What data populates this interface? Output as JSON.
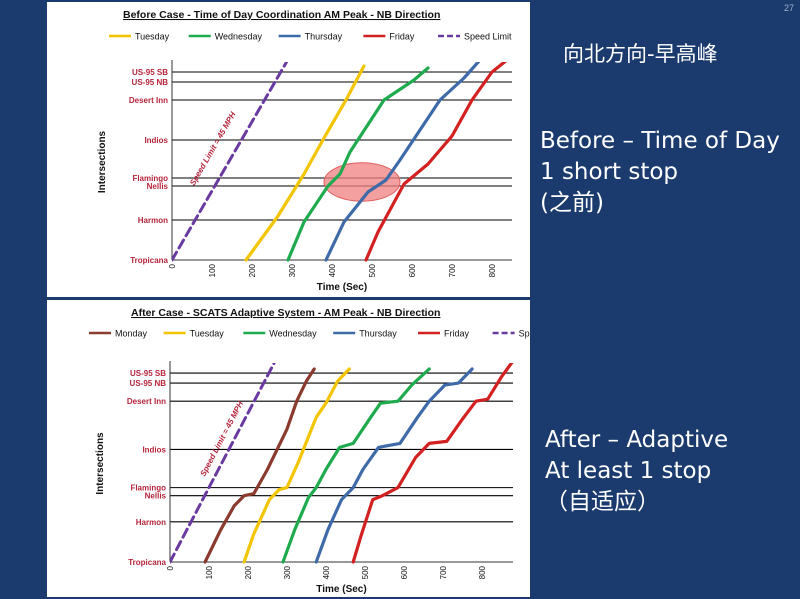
{
  "slide": {
    "page_number": "27",
    "chinese_title": "向北方向-早高峰",
    "before_text": [
      "Before – Time of Day",
      "1 short stop",
      "(之前)"
    ],
    "after_text": [
      "After – Adaptive",
      "At least 1 stop",
      "（自适应）"
    ]
  },
  "chart_data": [
    {
      "type": "line",
      "title": "Before Case - Time of Day Coordination AM Peak - NB Direction",
      "xlabel": "Time (Sec)",
      "ylabel": "Intersections",
      "xlim": [
        0,
        850
      ],
      "xticks": [
        0,
        100,
        200,
        300,
        400,
        500,
        600,
        700,
        800
      ],
      "y_categories": [
        "Tropicana",
        "Harmon",
        "Nellis",
        "Flamingo",
        "Indios",
        "Desert Inn",
        "US-95 NB",
        "US-95 SB"
      ],
      "y_positions": [
        0,
        1,
        1.85,
        2.05,
        3,
        4,
        4.45,
        4.7
      ],
      "ylim": [
        0,
        4.9
      ],
      "legend": [
        "Tuesday",
        "Wednesday",
        "Thursday",
        "Friday",
        "Speed Limit"
      ],
      "annotation": "Speed Limit = 45 MPH",
      "highlight": {
        "x_center": 475,
        "y_center": 1.95,
        "x_radius": 95,
        "y_radius": 0.48,
        "color": "#f08080"
      },
      "series": [
        {
          "name": "Speed Limit",
          "color": "#6a3aa0",
          "dash": true,
          "points": [
            [
              0,
              0
            ],
            [
              295,
              5.1
            ]
          ]
        },
        {
          "name": "Tuesday",
          "color": "#f2c500",
          "points": [
            [
              185,
              0
            ],
            [
              265,
              1.1
            ],
            [
              330,
              2.15
            ],
            [
              380,
              3.05
            ],
            [
              435,
              4.0
            ],
            [
              480,
              4.85
            ]
          ]
        },
        {
          "name": "Wednesday",
          "color": "#1faa4e",
          "points": [
            [
              290,
              0
            ],
            [
              330,
              0.95
            ],
            [
              390,
              1.85
            ],
            [
              420,
              2.15
            ],
            [
              445,
              2.7
            ],
            [
              530,
              4.0
            ],
            [
              605,
              4.5
            ],
            [
              640,
              4.8
            ]
          ]
        },
        {
          "name": "Thursday",
          "color": "#3f6aa8",
          "points": [
            [
              385,
              0
            ],
            [
              430,
              0.95
            ],
            [
              490,
              1.7
            ],
            [
              535,
              2.0
            ],
            [
              570,
              2.5
            ],
            [
              670,
              4.0
            ],
            [
              730,
              4.55
            ],
            [
              770,
              5.0
            ]
          ]
        },
        {
          "name": "Friday",
          "color": "#d32020",
          "points": [
            [
              485,
              0
            ],
            [
              515,
              0.7
            ],
            [
              580,
              1.9
            ],
            [
              640,
              2.4
            ],
            [
              700,
              3.1
            ],
            [
              750,
              4.0
            ],
            [
              800,
              4.7
            ],
            [
              850,
              5.1
            ]
          ]
        }
      ]
    },
    {
      "type": "line",
      "title": "After Case - SCATS Adaptive System - AM Peak - NB Direction",
      "xlabel": "Time (Sec)",
      "ylabel": "Intersections",
      "xlim": [
        0,
        880
      ],
      "xticks": [
        0,
        100,
        200,
        300,
        400,
        500,
        600,
        700,
        800
      ],
      "y_categories": [
        "Tropicana",
        "Harmon",
        "Nellis",
        "Flamingo",
        "Indios",
        "Desert Inn",
        "US-95 NB",
        "US-95 SB"
      ],
      "y_positions": [
        0,
        1,
        1.65,
        1.85,
        2.8,
        4.0,
        4.45,
        4.7
      ],
      "ylim": [
        0,
        4.9
      ],
      "legend": [
        "Monday",
        "Tuesday",
        "Wednesday",
        "Thursday",
        "Friday",
        "Speed Limit"
      ],
      "annotation": "Speed Limit = 45 MPH",
      "series": [
        {
          "name": "Speed Limit",
          "color": "#6a3aa0",
          "dash": true,
          "points": [
            [
              0,
              0
            ],
            [
              270,
              5.0
            ]
          ]
        },
        {
          "name": "Monday",
          "color": "#8b3a2e",
          "points": [
            [
              90,
              0
            ],
            [
              130,
              0.8
            ],
            [
              165,
              1.4
            ],
            [
              190,
              1.65
            ],
            [
              215,
              1.7
            ],
            [
              250,
              2.3
            ],
            [
              300,
              3.3
            ],
            [
              325,
              4.0
            ],
            [
              350,
              4.5
            ],
            [
              370,
              4.8
            ]
          ]
        },
        {
          "name": "Tuesday",
          "color": "#f2c500",
          "points": [
            [
              190,
              0
            ],
            [
              215,
              0.7
            ],
            [
              255,
              1.55
            ],
            [
              280,
              1.8
            ],
            [
              300,
              1.85
            ],
            [
              330,
              2.5
            ],
            [
              375,
              3.6
            ],
            [
              400,
              3.95
            ],
            [
              430,
              4.5
            ],
            [
              460,
              4.8
            ]
          ]
        },
        {
          "name": "Wednesday",
          "color": "#1faa4e",
          "points": [
            [
              290,
              0
            ],
            [
              320,
              0.8
            ],
            [
              355,
              1.6
            ],
            [
              375,
              1.85
            ],
            [
              400,
              2.3
            ],
            [
              435,
              2.85
            ],
            [
              470,
              2.95
            ],
            [
              515,
              3.6
            ],
            [
              540,
              3.95
            ],
            [
              585,
              4.0
            ],
            [
              620,
              4.4
            ],
            [
              665,
              4.8
            ]
          ]
        },
        {
          "name": "Thursday",
          "color": "#3f6aa8",
          "points": [
            [
              375,
              0
            ],
            [
              405,
              0.8
            ],
            [
              440,
              1.55
            ],
            [
              470,
              1.85
            ],
            [
              495,
              2.3
            ],
            [
              535,
              2.85
            ],
            [
              590,
              2.95
            ],
            [
              635,
              3.6
            ],
            [
              665,
              4.0
            ],
            [
              705,
              4.4
            ],
            [
              740,
              4.45
            ],
            [
              775,
              4.8
            ]
          ]
        },
        {
          "name": "Friday",
          "color": "#d32020",
          "points": [
            [
              470,
              0
            ],
            [
              490,
              0.65
            ],
            [
              520,
              1.55
            ],
            [
              545,
              1.65
            ],
            [
              585,
              1.85
            ],
            [
              630,
              2.6
            ],
            [
              665,
              2.95
            ],
            [
              710,
              3.0
            ],
            [
              750,
              3.55
            ],
            [
              785,
              4.0
            ],
            [
              815,
              4.05
            ],
            [
              850,
              4.6
            ],
            [
              880,
              5.0
            ]
          ]
        }
      ]
    }
  ]
}
